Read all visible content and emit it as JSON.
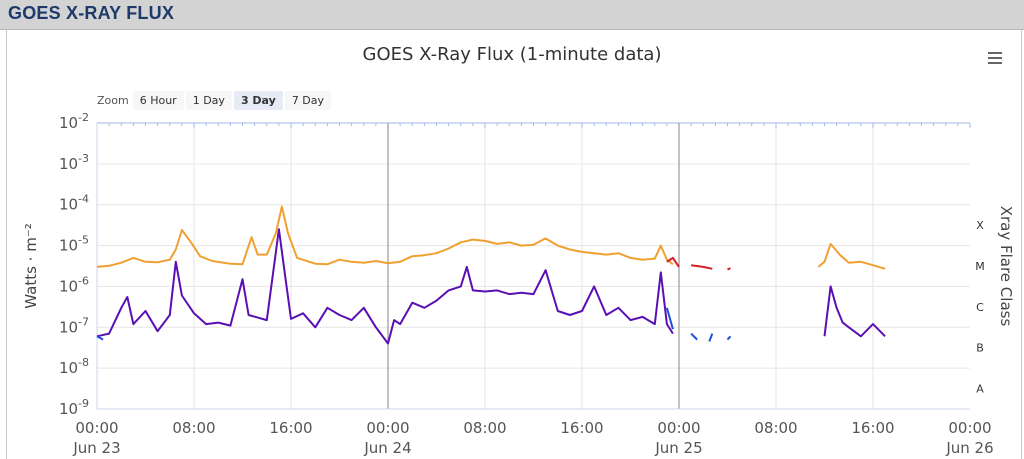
{
  "header": {
    "title": "GOES X-RAY FLUX"
  },
  "menu": {
    "icon": "hamburger-menu-icon"
  },
  "zoom": {
    "label": "Zoom",
    "buttons": [
      "6 Hour",
      "1 Day",
      "3 Day",
      "7 Day"
    ],
    "active": "3 Day"
  },
  "colors": {
    "long_channel": "#f0a030",
    "long_channel_alt": "#d61e28",
    "short_channel": "#5a0fb4",
    "short_channel_alt": "#2050e0",
    "grid": "#e6e6e6",
    "day_divider": "#999999"
  },
  "chart_data": {
    "type": "line",
    "title": "GOES X-Ray Flux (1-minute data)",
    "ylabel": "Watts · m⁻²",
    "y2label": "Xray Flare Class",
    "yscale": "log",
    "ylim_exponents": [
      -9,
      -2
    ],
    "y_tick_labels": [
      {
        "base": "10",
        "exp": "-2"
      },
      {
        "base": "10",
        "exp": "-3"
      },
      {
        "base": "10",
        "exp": "-4"
      },
      {
        "base": "10",
        "exp": "-5"
      },
      {
        "base": "10",
        "exp": "-6"
      },
      {
        "base": "10",
        "exp": "-7"
      },
      {
        "base": "10",
        "exp": "-8"
      },
      {
        "base": "10",
        "exp": "-9"
      }
    ],
    "flare_classes": [
      {
        "label": "X",
        "exponent": -4
      },
      {
        "label": "M",
        "exponent": -5
      },
      {
        "label": "C",
        "exponent": -6
      },
      {
        "label": "B",
        "exponent": -7
      },
      {
        "label": "A",
        "exponent": -8
      }
    ],
    "x_range": [
      "Jun 23 00:00",
      "Jun 26 00:00"
    ],
    "x_ticks": [
      {
        "time": "00:00",
        "date": "Jun 23"
      },
      {
        "time": "08:00",
        "date": ""
      },
      {
        "time": "16:00",
        "date": ""
      },
      {
        "time": "00:00",
        "date": "Jun 24"
      },
      {
        "time": "08:00",
        "date": ""
      },
      {
        "time": "16:00",
        "date": ""
      },
      {
        "time": "00:00",
        "date": "Jun 25"
      },
      {
        "time": "08:00",
        "date": ""
      },
      {
        "time": "16:00",
        "date": ""
      },
      {
        "time": "00:00",
        "date": "Jun 26"
      }
    ],
    "day_dividers": [
      "Jun 24 00:00",
      "Jun 25 00:00"
    ],
    "grid": true,
    "series": [
      {
        "channel": "long",
        "color": "#f0a030",
        "segments": [
          [
            [
              "Jun 23 00:00",
              3e-06
            ],
            [
              "Jun 23 01:00",
              3.2e-06
            ],
            [
              "Jun 23 02:00",
              3.8e-06
            ],
            [
              "Jun 23 03:00",
              5e-06
            ],
            [
              "Jun 23 04:00",
              4e-06
            ],
            [
              "Jun 23 05:00",
              3.9e-06
            ],
            [
              "Jun 23 06:00",
              4.5e-06
            ],
            [
              "Jun 23 06:30",
              8e-06
            ],
            [
              "Jun 23 07:00",
              2.4e-05
            ],
            [
              "Jun 23 07:45",
              1.2e-05
            ],
            [
              "Jun 23 08:30",
              5.5e-06
            ],
            [
              "Jun 23 09:30",
              4.2e-06
            ],
            [
              "Jun 23 11:00",
              3.6e-06
            ],
            [
              "Jun 23 12:00",
              3.5e-06
            ],
            [
              "Jun 23 12:45",
              1.6e-05
            ],
            [
              "Jun 23 13:15",
              6e-06
            ],
            [
              "Jun 23 14:00",
              6e-06
            ],
            [
              "Jun 23 14:45",
              2e-05
            ],
            [
              "Jun 23 15:15",
              9e-05
            ],
            [
              "Jun 23 15:45",
              2e-05
            ],
            [
              "Jun 23 16:30",
              5e-06
            ],
            [
              "Jun 23 18:00",
              3.6e-06
            ],
            [
              "Jun 23 19:00",
              3.5e-06
            ],
            [
              "Jun 23 20:00",
              4.5e-06
            ],
            [
              "Jun 23 21:00",
              4e-06
            ],
            [
              "Jun 23 22:00",
              3.8e-06
            ],
            [
              "Jun 23 23:00",
              4.2e-06
            ],
            [
              "Jun 24 00:00",
              3.7e-06
            ],
            [
              "Jun 24 01:00",
              4e-06
            ],
            [
              "Jun 24 02:00",
              5.5e-06
            ],
            [
              "Jun 24 03:00",
              5.8e-06
            ],
            [
              "Jun 24 04:00",
              6.5e-06
            ],
            [
              "Jun 24 05:00",
              8.5e-06
            ],
            [
              "Jun 24 06:00",
              1.2e-05
            ],
            [
              "Jun 24 07:00",
              1.4e-05
            ],
            [
              "Jun 24 08:00",
              1.3e-05
            ],
            [
              "Jun 24 09:00",
              1.1e-05
            ],
            [
              "Jun 24 10:00",
              1.2e-05
            ],
            [
              "Jun 24 11:00",
              1e-05
            ],
            [
              "Jun 24 12:00",
              1.05e-05
            ],
            [
              "Jun 24 13:00",
              1.5e-05
            ],
            [
              "Jun 24 14:00",
              1e-05
            ],
            [
              "Jun 24 15:00",
              8e-06
            ],
            [
              "Jun 24 16:00",
              7e-06
            ],
            [
              "Jun 24 17:00",
              6.5e-06
            ],
            [
              "Jun 24 18:00",
              6e-06
            ],
            [
              "Jun 24 19:00",
              6.5e-06
            ],
            [
              "Jun 24 20:00",
              5e-06
            ],
            [
              "Jun 24 21:00",
              4.5e-06
            ],
            [
              "Jun 24 22:00",
              4.8e-06
            ],
            [
              "Jun 24 22:30",
              1e-05
            ],
            [
              "Jun 24 23:00",
              4.5e-06
            ],
            [
              "Jun 24 23:30",
              3.5e-06
            ]
          ],
          [
            [
              "Jun 25 11:30",
              3e-06
            ],
            [
              "Jun 25 12:00",
              4e-06
            ],
            [
              "Jun 25 12:30",
              1.1e-05
            ],
            [
              "Jun 25 13:15",
              6e-06
            ],
            [
              "Jun 25 14:00",
              3.8e-06
            ],
            [
              "Jun 25 15:00",
              4e-06
            ],
            [
              "Jun 25 16:00",
              3.3e-06
            ],
            [
              "Jun 25 17:00",
              2.7e-06
            ]
          ]
        ]
      },
      {
        "channel": "long-alt",
        "color": "#d61e28",
        "segments": [
          [
            [
              "Jun 24 23:00",
              4e-06
            ],
            [
              "Jun 24 23:30",
              5e-06
            ],
            [
              "Jun 25 00:00",
              3e-06
            ]
          ],
          [
            [
              "Jun 25 01:00",
              3.3e-06
            ],
            [
              "Jun 25 02:00",
              3e-06
            ],
            [
              "Jun 25 02:45",
              2.7e-06
            ]
          ],
          [
            [
              "Jun 25 04:00",
              2.6e-06
            ],
            [
              "Jun 25 04:15",
              2.8e-06
            ]
          ]
        ]
      },
      {
        "channel": "short",
        "color": "#5a0fb4",
        "segments": [
          [
            [
              "Jun 23 00:00",
              6e-08
            ],
            [
              "Jun 23 01:00",
              7e-08
            ],
            [
              "Jun 23 02:00",
              3e-07
            ],
            [
              "Jun 23 02:30",
              5.5e-07
            ],
            [
              "Jun 23 03:00",
              1.2e-07
            ],
            [
              "Jun 23 04:00",
              2.5e-07
            ],
            [
              "Jun 23 05:00",
              8e-08
            ],
            [
              "Jun 23 06:00",
              2e-07
            ],
            [
              "Jun 23 06:30",
              4e-06
            ],
            [
              "Jun 23 07:00",
              6e-07
            ],
            [
              "Jun 23 08:00",
              2.2e-07
            ],
            [
              "Jun 23 09:00",
              1.2e-07
            ],
            [
              "Jun 23 10:00",
              1.3e-07
            ],
            [
              "Jun 23 11:00",
              1.1e-07
            ],
            [
              "Jun 23 12:00",
              1.5e-06
            ],
            [
              "Jun 23 12:30",
              2e-07
            ],
            [
              "Jun 23 14:00",
              1.5e-07
            ],
            [
              "Jun 23 15:00",
              2.5e-05
            ],
            [
              "Jun 23 15:30",
              2e-06
            ],
            [
              "Jun 23 16:00",
              1.6e-07
            ],
            [
              "Jun 23 17:00",
              2.2e-07
            ],
            [
              "Jun 23 18:00",
              1e-07
            ],
            [
              "Jun 23 19:00",
              3e-07
            ],
            [
              "Jun 23 20:00",
              2e-07
            ],
            [
              "Jun 23 21:00",
              1.5e-07
            ],
            [
              "Jun 23 22:00",
              3e-07
            ],
            [
              "Jun 23 23:00",
              1e-07
            ],
            [
              "Jun 24 00:00",
              4e-08
            ],
            [
              "Jun 24 00:30",
              1.5e-07
            ],
            [
              "Jun 24 01:00",
              1.2e-07
            ],
            [
              "Jun 24 02:00",
              4e-07
            ],
            [
              "Jun 24 03:00",
              3e-07
            ],
            [
              "Jun 24 04:00",
              4.5e-07
            ],
            [
              "Jun 24 05:00",
              8e-07
            ],
            [
              "Jun 24 06:00",
              1e-06
            ],
            [
              "Jun 24 06:30",
              3e-06
            ],
            [
              "Jun 24 07:00",
              8e-07
            ],
            [
              "Jun 24 08:00",
              7.5e-07
            ],
            [
              "Jun 24 09:00",
              8e-07
            ],
            [
              "Jun 24 10:00",
              6.5e-07
            ],
            [
              "Jun 24 11:00",
              7e-07
            ],
            [
              "Jun 24 12:00",
              6.5e-07
            ],
            [
              "Jun 24 13:00",
              2.5e-06
            ],
            [
              "Jun 24 14:00",
              2.5e-07
            ],
            [
              "Jun 24 15:00",
              2e-07
            ],
            [
              "Jun 24 16:00",
              2.5e-07
            ],
            [
              "Jun 24 17:00",
              1e-06
            ],
            [
              "Jun 24 18:00",
              2e-07
            ],
            [
              "Jun 24 19:00",
              3e-07
            ],
            [
              "Jun 24 20:00",
              1.5e-07
            ],
            [
              "Jun 24 21:00",
              1.8e-07
            ],
            [
              "Jun 24 22:00",
              1.2e-07
            ],
            [
              "Jun 24 22:30",
              2.2e-06
            ],
            [
              "Jun 24 23:00",
              1.2e-07
            ],
            [
              "Jun 24 23:30",
              7e-08
            ]
          ],
          [
            [
              "Jun 25 12:00",
              6e-08
            ],
            [
              "Jun 25 12:30",
              1e-06
            ],
            [
              "Jun 25 13:00",
              3e-07
            ],
            [
              "Jun 25 13:30",
              1.3e-07
            ],
            [
              "Jun 25 14:00",
              1e-07
            ],
            [
              "Jun 25 15:00",
              6e-08
            ],
            [
              "Jun 25 16:00",
              1.2e-07
            ],
            [
              "Jun 25 17:00",
              6e-08
            ]
          ]
        ]
      },
      {
        "channel": "short-alt",
        "color": "#2050e0",
        "segments": [
          [
            [
              "Jun 23 00:00",
              6e-08
            ],
            [
              "Jun 23 00:30",
              5e-08
            ]
          ],
          [
            [
              "Jun 24 23:00",
              3e-07
            ],
            [
              "Jun 24 23:30",
              9e-08
            ]
          ],
          [
            [
              "Jun 25 01:00",
              7e-08
            ],
            [
              "Jun 25 01:30",
              5e-08
            ]
          ],
          [
            [
              "Jun 25 02:30",
              4.5e-08
            ],
            [
              "Jun 25 02:45",
              7e-08
            ]
          ],
          [
            [
              "Jun 25 04:00",
              5e-08
            ],
            [
              "Jun 25 04:15",
              6e-08
            ]
          ]
        ]
      }
    ]
  }
}
